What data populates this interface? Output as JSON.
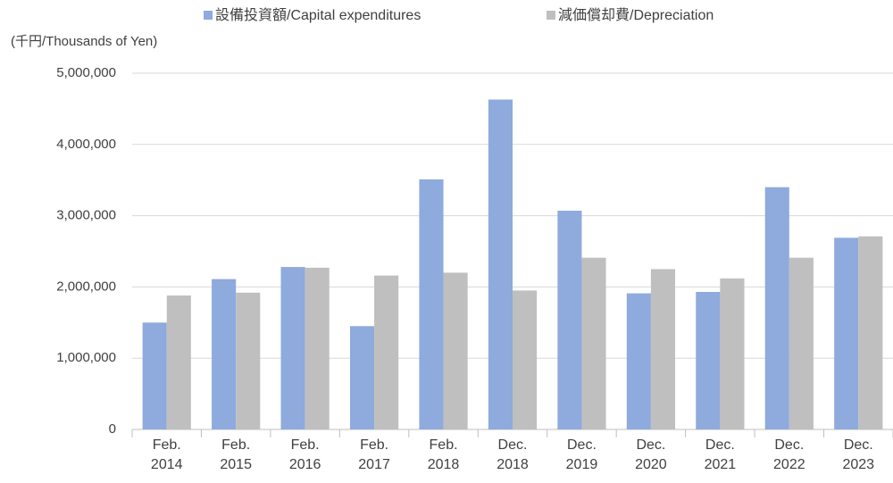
{
  "chart_data": {
    "type": "bar",
    "unit_label": "(千円/Thousands of Yen)",
    "categories": [
      "Feb.\n2014",
      "Feb.\n2015",
      "Feb.\n2016",
      "Feb.\n2017",
      "Feb.\n2018",
      "Dec.\n2018",
      "Dec.\n2019",
      "Dec.\n2020",
      "Dec.\n2021",
      "Dec.\n2022",
      "Dec.\n2023"
    ],
    "series": [
      {
        "name": "設備投資額/Capital expenditures",
        "color": "#8faadc",
        "values": [
          1500000,
          2110000,
          2280000,
          1450000,
          3510000,
          4630000,
          3070000,
          1910000,
          1930000,
          3400000,
          2690000
        ]
      },
      {
        "name": "減価償却費/Depreciation",
        "color": "#bfbfbf",
        "values": [
          1880000,
          1920000,
          2270000,
          2160000,
          2200000,
          1950000,
          2410000,
          2250000,
          2120000,
          2410000,
          2710000
        ]
      }
    ],
    "ylim": [
      0,
      5000000
    ],
    "yticks": [
      0,
      {
        "value": 1000000,
        "label": "1,000,000"
      },
      {
        "value": 2000000,
        "label": "2,000,000"
      },
      {
        "value": 3000000,
        "label": "3,000,000"
      },
      {
        "value": 4000000,
        "label": "4,000,000"
      },
      {
        "value": 5000000,
        "label": "5,000,000"
      }
    ],
    "grid": true,
    "legend": "top"
  }
}
